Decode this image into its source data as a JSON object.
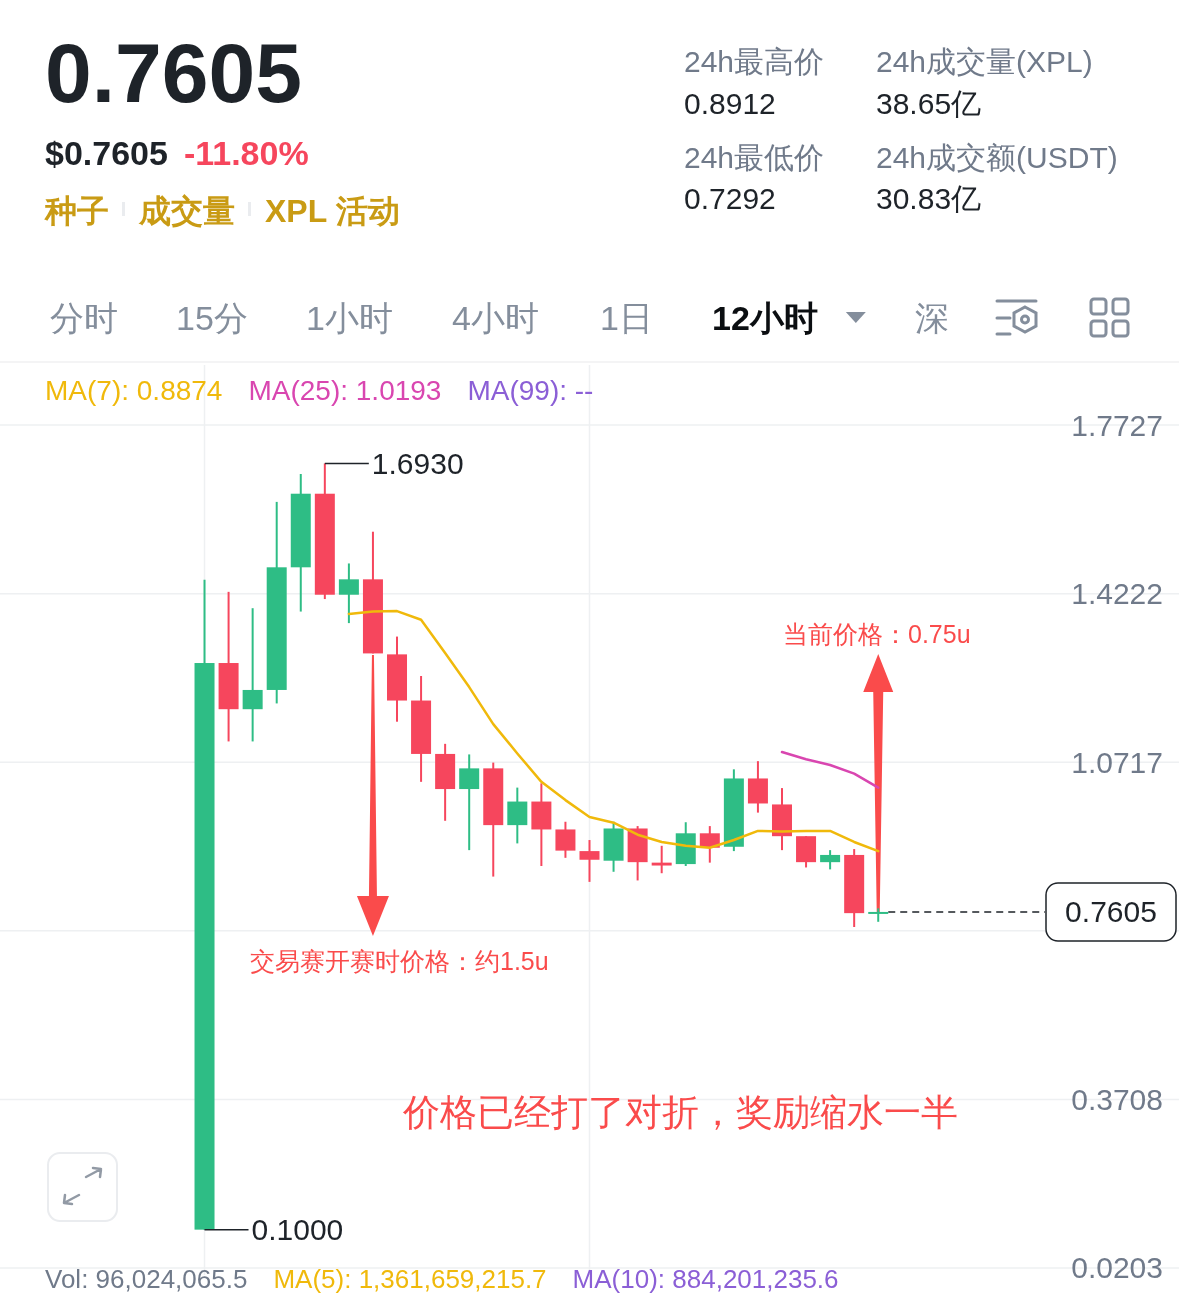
{
  "chart_data": {
    "type": "candlestick",
    "title": "0.7605",
    "categories": [
      null,
      null,
      null,
      null,
      null,
      null,
      null,
      null,
      null,
      null,
      null,
      null,
      null,
      null,
      null,
      null,
      null,
      null,
      null,
      null,
      null,
      null,
      null,
      null,
      null,
      null,
      null,
      null,
      null,
      null,
      null,
      null,
      null,
      null,
      null,
      null,
      null,
      null,
      null,
      null,
      null,
      null,
      null,
      null,
      null,
      null,
      null,
      null,
      null
    ],
    "ohlc": [
      null,
      null,
      null,
      null,
      null,
      null,
      null,
      null,
      [
        0.1,
        1.451,
        0.1,
        1.278
      ],
      [
        1.278,
        1.426,
        1.115,
        1.182
      ],
      [
        1.182,
        1.392,
        1.115,
        1.222
      ],
      [
        1.222,
        1.613,
        1.194,
        1.477
      ],
      [
        1.477,
        1.671,
        1.385,
        1.63
      ],
      [
        1.63,
        1.693,
        1.411,
        1.42
      ],
      [
        1.42,
        1.485,
        1.361,
        1.452
      ],
      [
        1.452,
        1.551,
        1.298,
        1.298
      ],
      [
        1.296,
        1.333,
        1.156,
        1.2
      ],
      [
        1.2,
        1.251,
        1.031,
        1.089
      ],
      [
        1.089,
        1.11,
        0.95,
        1.016
      ],
      [
        1.016,
        1.088,
        0.889,
        1.059
      ],
      [
        1.059,
        1.071,
        0.834,
        0.941
      ],
      [
        0.941,
        1.019,
        0.903,
        0.99
      ],
      [
        0.99,
        1.028,
        0.856,
        0.932
      ],
      [
        0.932,
        0.948,
        0.873,
        0.888
      ],
      [
        0.887,
        0.91,
        0.823,
        0.869
      ],
      [
        0.867,
        0.948,
        0.844,
        0.934
      ],
      [
        0.934,
        0.939,
        0.826,
        0.864
      ],
      [
        0.863,
        0.898,
        0.841,
        0.857
      ],
      [
        0.86,
        0.947,
        0.856,
        0.924
      ],
      [
        0.924,
        0.939,
        0.863,
        0.894
      ],
      [
        0.896,
        1.057,
        0.887,
        1.038
      ],
      [
        1.038,
        1.074,
        0.967,
        0.986
      ],
      [
        0.984,
        1.018,
        0.889,
        0.918
      ],
      [
        0.918,
        0.918,
        0.853,
        0.864
      ],
      [
        0.864,
        0.889,
        0.849,
        0.879
      ],
      [
        0.879,
        0.8912,
        0.7292,
        0.758
      ],
      [
        0.758,
        0.768,
        0.74,
        0.7605
      ],
      null,
      null,
      null,
      null,
      null,
      null,
      null,
      null,
      null,
      null,
      null,
      null
    ],
    "series": [
      {
        "name": "MA(7): 0.8874",
        "type": "line",
        "color": "#f0b90b",
        "values": [
          null,
          null,
          null,
          null,
          null,
          null,
          null,
          null,
          null,
          null,
          null,
          null,
          null,
          null,
          1.38,
          1.385,
          1.386,
          1.368,
          1.299,
          1.228,
          1.151,
          1.09,
          1.031,
          0.993,
          0.958,
          0.946,
          0.921,
          0.906,
          0.898,
          0.894,
          0.91,
          0.929,
          0.928,
          0.929,
          0.929,
          0.906,
          0.887,
          null,
          null,
          null,
          null,
          null,
          null,
          null,
          null,
          null,
          null,
          null,
          null
        ]
      },
      {
        "name": "MA(25): 1.0193",
        "type": "line",
        "color": "#d946b0",
        "values": [
          null,
          null,
          null,
          null,
          null,
          null,
          null,
          null,
          null,
          null,
          null,
          null,
          null,
          null,
          null,
          null,
          null,
          null,
          null,
          null,
          null,
          null,
          null,
          null,
          null,
          null,
          null,
          null,
          null,
          null,
          null,
          null,
          1.093,
          1.078,
          1.066,
          1.048,
          1.019,
          null,
          null,
          null,
          null,
          null,
          null,
          null,
          null,
          null,
          null,
          null,
          null
        ]
      },
      {
        "name": "MA(99): --",
        "type": "line",
        "color": "#8b5fd6",
        "values": [
          null,
          null,
          null,
          null,
          null,
          null,
          null,
          null,
          null,
          null,
          null,
          null,
          null,
          null,
          null,
          null,
          null,
          null,
          null,
          null,
          null,
          null,
          null,
          null,
          null,
          null,
          null,
          null,
          null,
          null,
          null,
          null,
          null,
          null,
          null,
          null,
          null,
          null,
          null,
          null,
          null,
          null,
          null,
          null,
          null,
          null,
          null,
          null,
          null
        ]
      }
    ],
    "ylim": [
      0.0057,
      1.8976
    ],
    "yticks": [
      1.7727,
      1.4222,
      1.0717,
      {
        "value": 0.7212,
        "label": null
      },
      0.3708,
      0.0203
    ],
    "tick_labels": "y",
    "grid": true,
    "legend": "top left",
    "ref_lines": [
      {
        "axis": "y",
        "value": 0.7605,
        "label": "0.7605",
        "line_style": "dashed",
        "color": "#1e2329"
      }
    ],
    "annotations": [
      "$0.7605",
      "-11.80%",
      "种子",
      "成交量",
      "XPL 活动",
      "24h最高价",
      "0.8912",
      "24h最低价",
      "0.7292",
      "24h成交量(XPL)",
      "38.65亿",
      "24h成交额(USDT)",
      "30.83亿",
      "分时",
      "15分",
      "1小时",
      "4小时",
      "1日",
      "12小时",
      "深",
      "1.6930",
      "0.1000",
      "当前价格：0.75u",
      "交易赛开赛时价格：约1.5u",
      "价格已经打了对折，奖励缩水一半",
      "Vol: 96,024,065.5",
      "MA(5): 1,361,659,215.7",
      "MA(10): 884,201,235.6"
    ]
  }
}
